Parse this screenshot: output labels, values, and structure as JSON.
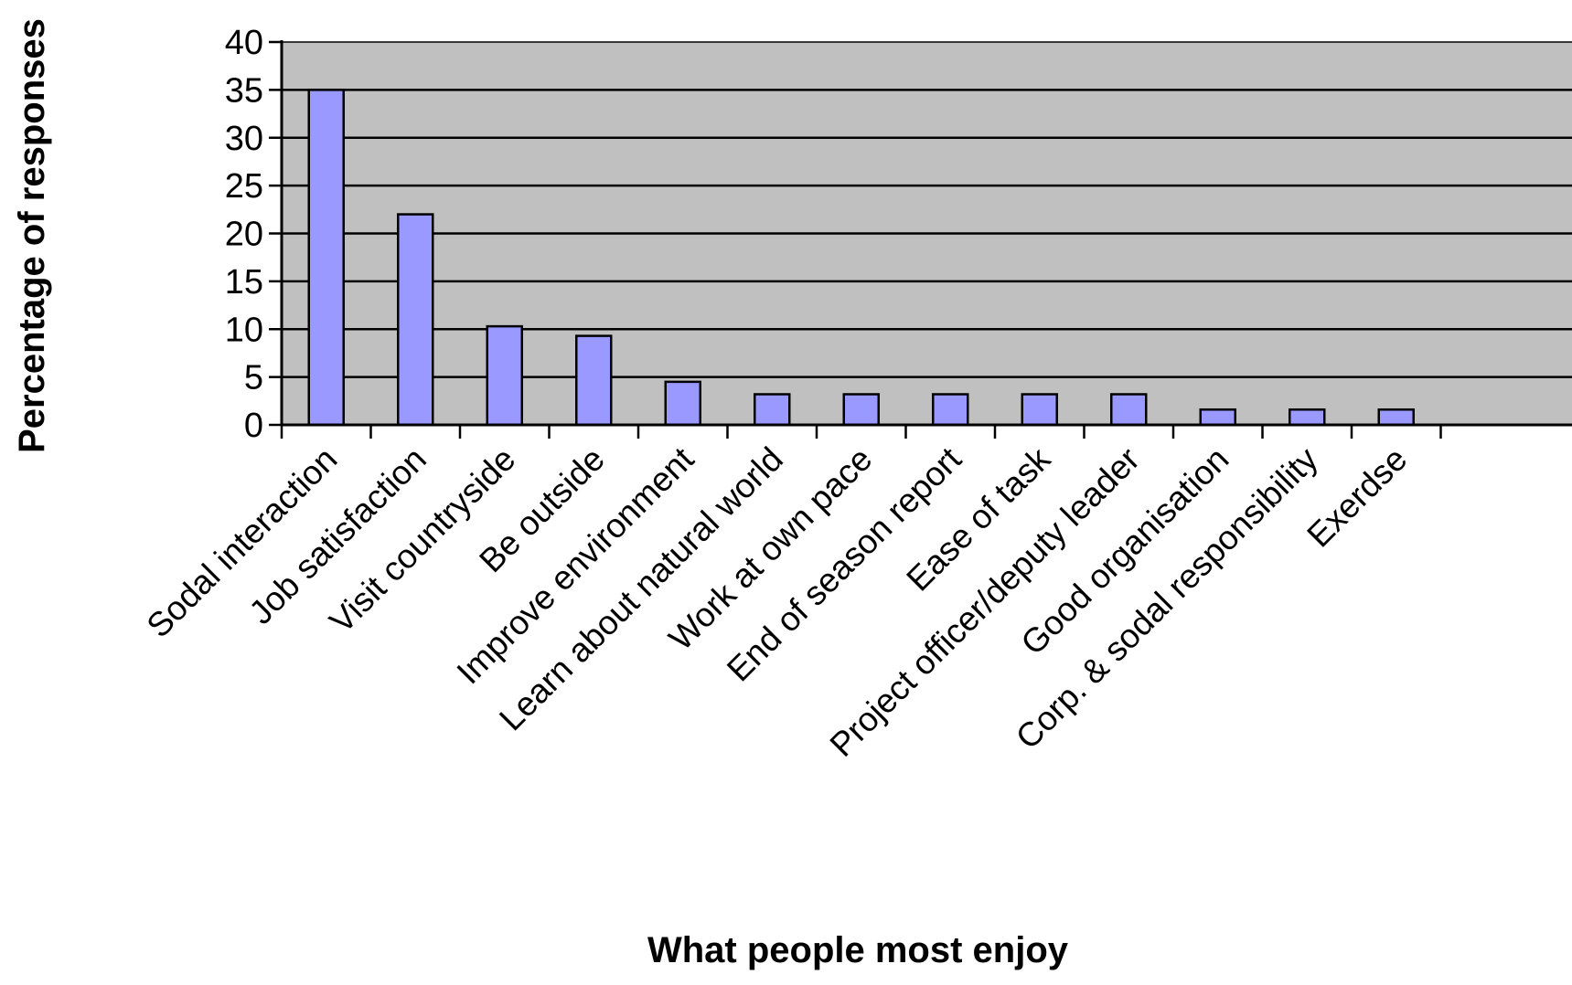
{
  "chart_data": {
    "type": "bar",
    "title": "",
    "xlabel": "What people most enjoy",
    "ylabel": "Percentage of responses",
    "ylim": [
      0,
      40
    ],
    "yticks": [
      0,
      5,
      10,
      15,
      20,
      25,
      30,
      35,
      40
    ],
    "grid": true,
    "legend": "none",
    "categories": [
      "Sodal interaction",
      "Job satisfaction",
      "Visit countryside",
      "Be outside",
      "Improve environment",
      "Learn about natural world",
      "Work at own pace",
      "End of season report",
      "Ease of task",
      "Project officer/deputy leader",
      "Good organisation",
      "Corp. & sodal responsibility",
      "Exerdse"
    ],
    "values": [
      35,
      22,
      10.3,
      9.3,
      4.5,
      3.2,
      3.2,
      3.2,
      3.2,
      3.2,
      1.6,
      1.6,
      1.6
    ],
    "colors": {
      "bar_fill": "#9999ff",
      "bar_stroke": "#000000",
      "plot_background": "#c0c0c0",
      "gridline": "#000000"
    }
  }
}
